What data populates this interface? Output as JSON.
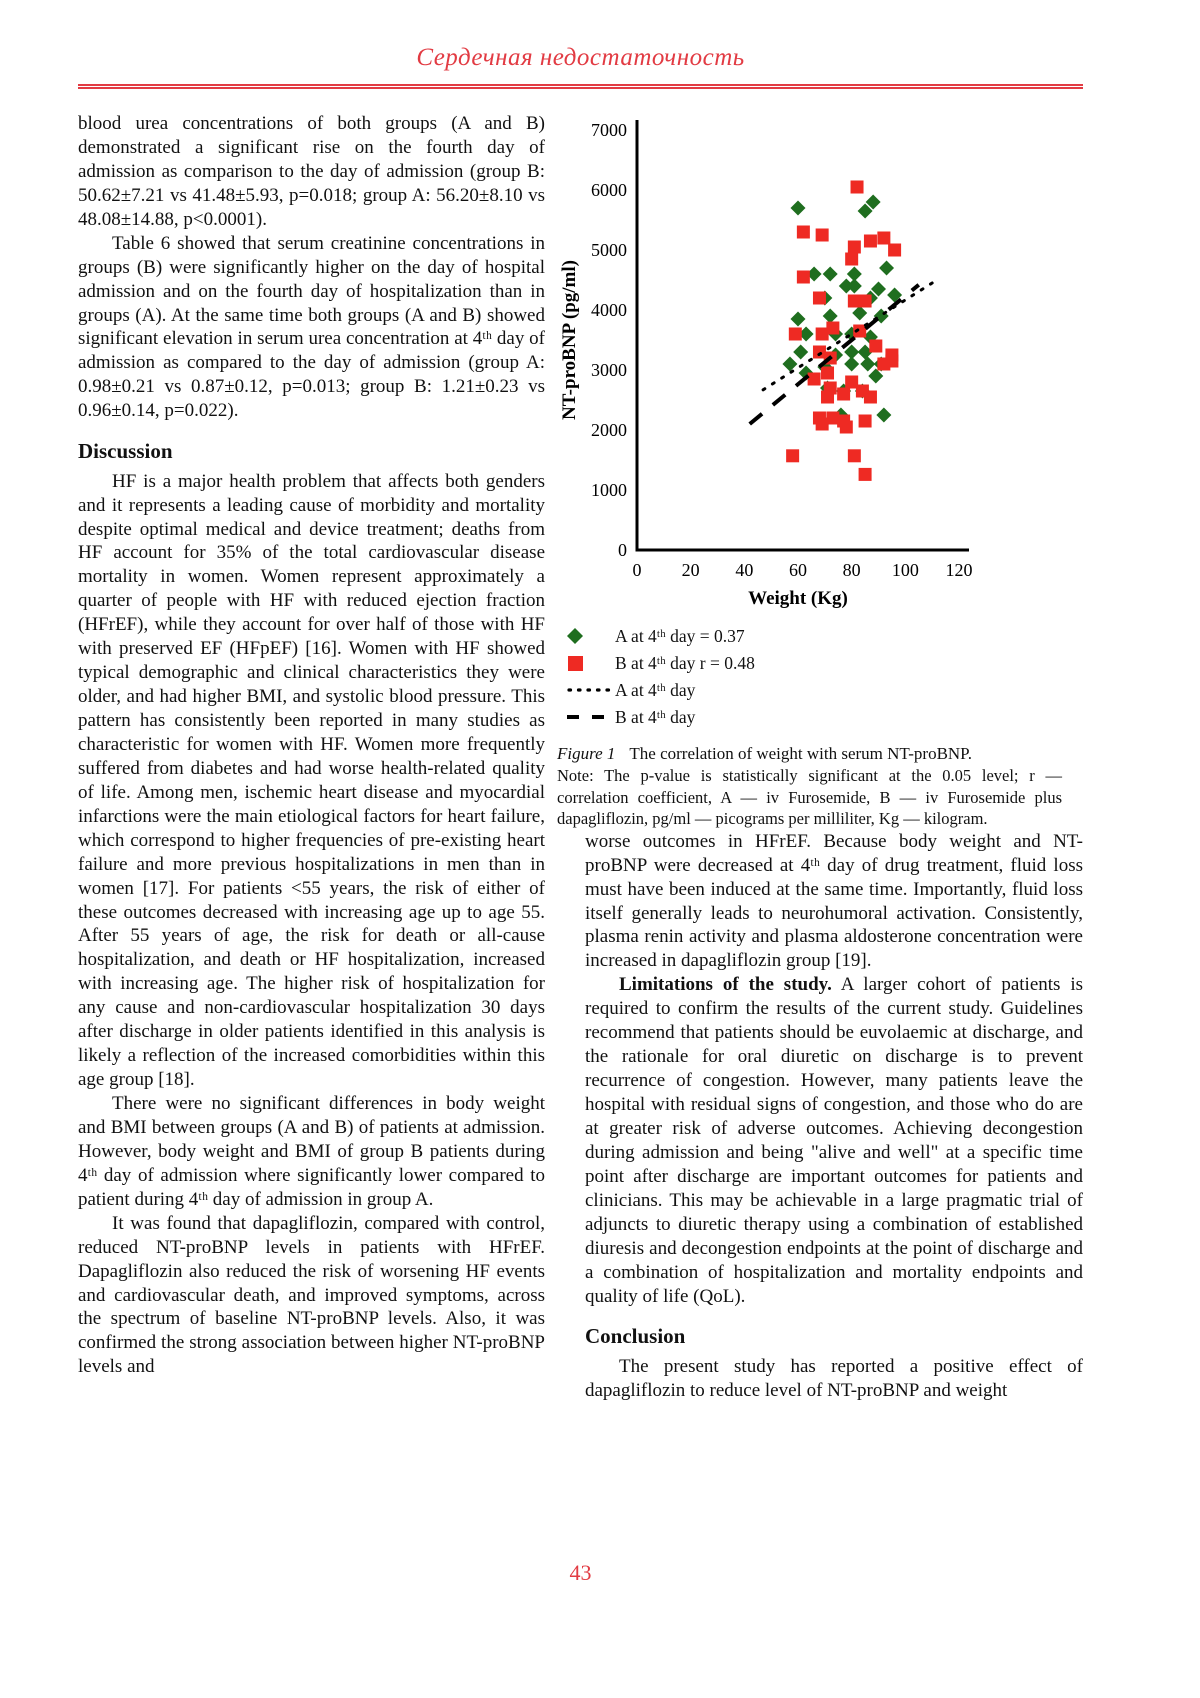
{
  "page": {
    "header_title": "Сердечная недостаточность",
    "page_number": "43",
    "accent_color": "#e23b43"
  },
  "left_column": {
    "p1": "blood urea concentrations of both groups (A and B) demonstrated a significant rise on the fourth day of admission as comparison to the day of admission (group B: 50.62±7.21 vs 41.48±5.93, p=0.018; group A: 56.20±8.10 vs 48.08±14.88, p<0.0001).",
    "p2": "Table 6 showed that serum creatinine concentrations in groups (B) were significantly higher on the day of hospital admission and on the fourth day of hospitalization than in groups (A). At the same time both groups (A and B) showed significant elevation in serum urea concentration at 4ᵗʰ day of admission as compared to the day of admission (group A: 0.98±0.21 vs 0.87±0.12, p=0.013; group B: 1.21±0.23 vs 0.96±0.14, p=0.022).",
    "discussion_heading": "Discussion",
    "p3": "HF is a major health problem that affects both genders and it represents a leading cause of morbidity and mortality despite optimal medical and device treatment; deaths from HF account for 35% of the total cardiovascular disease mortality in women. Women represent approximately a quarter of people with HF with reduced ejection fraction (HFrEF), while they account for over half of those with HF with preserved EF (HFpEF) [16]. Women with HF showed typical demographic and clinical characteristics they were older, and had higher BMI, and systolic blood pressure. This pattern has consistently been reported in many studies as characteristic for women with HF. Women more frequently suffered from diabetes and had worse health-related quality of life. Among men, ischemic heart disease and myocardial infarctions were the main etiological factors for heart failure, which correspond to higher frequencies of pre-existing heart failure and more previous hospitalizations in men than in women [17]. For patients <55 years, the risk of either of these outcomes decreased with increasing age up to age 55. After 55 years of age, the risk for death or all-cause hospitalization, and death or HF hospitalization, increased with increasing age. The higher risk of hospitalization for any cause and non-cardiovascular hospitalization 30 days after discharge in older patients identified in this analysis is likely a reflection of the increased comorbidities within this age group [18].",
    "p4": "There were no significant differences in body weight and BMI between groups (A and B) of patients at admission. However, body weight and BMI of group B patients during 4ᵗʰ day of admission where significantly lower compared to patient during 4ᵗʰ day of admission in group A.",
    "p5": "It was found that dapagliflozin, compared with control, reduced NT-proBNP levels in patients with HFrEF. Dapagliflozin also reduced the risk of worsening HF events and cardiovascular death, and improved symptoms, across the spectrum of baseline NT-proBNP levels. Also, it was confirmed the strong association between higher NT-proBNP levels and"
  },
  "figure": {
    "legend": [
      {
        "marker": "green-diamond",
        "label": "A at 4ᵗʰ day = 0.37"
      },
      {
        "marker": "red-square",
        "label": "B at 4ᵗʰ day r = 0.48"
      },
      {
        "marker": "dotted-line",
        "label": "A at 4ᵗʰ day"
      },
      {
        "marker": "dashed-line",
        "label": "B at 4ᵗʰ day"
      }
    ],
    "caption_label": "Figure 1",
    "caption_text": "The correlation of weight with serum NT-proBNP.",
    "note": "Note: The p-value is statistically significant at the 0.05 level; r — correlation coefficient, A — iv Furosemide, B — iv Furosemide plus dapagliflozin, pg/ml — picograms per milliliter, Kg — kilogram."
  },
  "chart_data": {
    "type": "scatter",
    "xlabel": "Weight (Kg)",
    "ylabel": "NT-proBNP (pg/ml)",
    "xlim": [
      0,
      120
    ],
    "ylim": [
      0,
      7000
    ],
    "x_ticks": [
      0,
      20,
      40,
      60,
      80,
      100,
      120
    ],
    "y_ticks": [
      0,
      1000,
      2000,
      3000,
      4000,
      5000,
      6000,
      7000
    ],
    "grid": false,
    "legend_position": "bottom-left",
    "series": [
      {
        "name": "A at 4ᵗʰ day (iv Furosemide)",
        "marker": "diamond",
        "color": "#1f6e1f",
        "points": [
          [
            60,
            5700
          ],
          [
            85,
            5650
          ],
          [
            88,
            5800
          ],
          [
            66,
            4600
          ],
          [
            72,
            4600
          ],
          [
            81,
            4600
          ],
          [
            93,
            4700
          ],
          [
            78,
            4400
          ],
          [
            81,
            4400
          ],
          [
            90,
            4350
          ],
          [
            70,
            4200
          ],
          [
            87,
            4200
          ],
          [
            96,
            4250
          ],
          [
            60,
            3850
          ],
          [
            72,
            3900
          ],
          [
            83,
            3950
          ],
          [
            91,
            3900
          ],
          [
            63,
            3600
          ],
          [
            74,
            3600
          ],
          [
            80,
            3600
          ],
          [
            87,
            3550
          ],
          [
            61,
            3300
          ],
          [
            74,
            3250
          ],
          [
            80,
            3300
          ],
          [
            85,
            3300
          ],
          [
            57,
            3100
          ],
          [
            63,
            2950
          ],
          [
            70,
            3050
          ],
          [
            80,
            3100
          ],
          [
            86,
            3100
          ],
          [
            91,
            3100
          ],
          [
            89,
            2900
          ],
          [
            71,
            2700
          ],
          [
            77,
            2650
          ],
          [
            84,
            2650
          ],
          [
            76,
            2250
          ],
          [
            92,
            2250
          ]
        ]
      },
      {
        "name": "B at 4ᵗʰ day (iv Furosemide plus dapagliflozin)",
        "marker": "square",
        "color": "#ee2a23",
        "points": [
          [
            82,
            6050
          ],
          [
            62,
            5300
          ],
          [
            69,
            5250
          ],
          [
            87,
            5150
          ],
          [
            92,
            5200
          ],
          [
            81,
            5050
          ],
          [
            96,
            5000
          ],
          [
            80,
            4850
          ],
          [
            62,
            4550
          ],
          [
            68,
            4200
          ],
          [
            81,
            4150
          ],
          [
            85,
            4150
          ],
          [
            59,
            3600
          ],
          [
            69,
            3600
          ],
          [
            73,
            3700
          ],
          [
            83,
            3650
          ],
          [
            89,
            3400
          ],
          [
            68,
            3300
          ],
          [
            72,
            3200
          ],
          [
            95,
            3250
          ],
          [
            92,
            3100
          ],
          [
            95,
            3150
          ],
          [
            66,
            2850
          ],
          [
            71,
            2950
          ],
          [
            72,
            2700
          ],
          [
            80,
            2800
          ],
          [
            71,
            2550
          ],
          [
            77,
            2600
          ],
          [
            84,
            2650
          ],
          [
            87,
            2550
          ],
          [
            68,
            2200
          ],
          [
            73,
            2200
          ],
          [
            69,
            2100
          ],
          [
            77,
            2150
          ],
          [
            78,
            2050
          ],
          [
            85,
            2150
          ],
          [
            58,
            1570
          ],
          [
            81,
            1570
          ],
          [
            85,
            1260
          ]
        ]
      }
    ],
    "trend_lines": [
      {
        "name": "A at 4ᵗʰ day",
        "style": "dotted",
        "color": "#000000",
        "from": [
          47,
          2670
        ],
        "to": [
          110,
          4450
        ]
      },
      {
        "name": "B at 4ᵗʰ day",
        "style": "dashed",
        "color": "#000000",
        "from": [
          42,
          2100
        ],
        "to": [
          105,
          4420
        ]
      }
    ]
  },
  "right_column": {
    "p1": "worse outcomes in HFrEF. Because body weight and NT-proBNP were decreased at 4ᵗʰ day of drug treatment, fluid loss must have been induced at the same time. Importantly, fluid loss itself generally leads to neurohumoral activation. Consistently, plasma renin activity and plasma aldosterone concentration were increased in dapagliflozin group [19].",
    "p2_lead": "Limitations of the study.",
    "p2_rest": " A larger cohort of patients is required to confirm the results of the current study. Guidelines recommend that patients should be euvolaemic at discharge, and the rationale for oral diuretic on discharge is to prevent recurrence of congestion. However, many patients leave the hospital with residual signs of congestion, and those who do are at greater risk of adverse outcomes. Achieving decongestion during admission and being \"alive and well\" at a specific time point after discharge are important outcomes for patients and clinicians. This may be achievable in a large pragmatic trial of adjuncts to diuretic therapy using a combination of established diuresis and decongestion endpoints at the point of discharge and a combination of hospitalization and mortality endpoints and quality of life (QoL).",
    "conclusion_heading": "Conclusion",
    "p3": "The present study has reported a positive effect of dapagliflozin to reduce level of NT-proBNP and weight"
  }
}
